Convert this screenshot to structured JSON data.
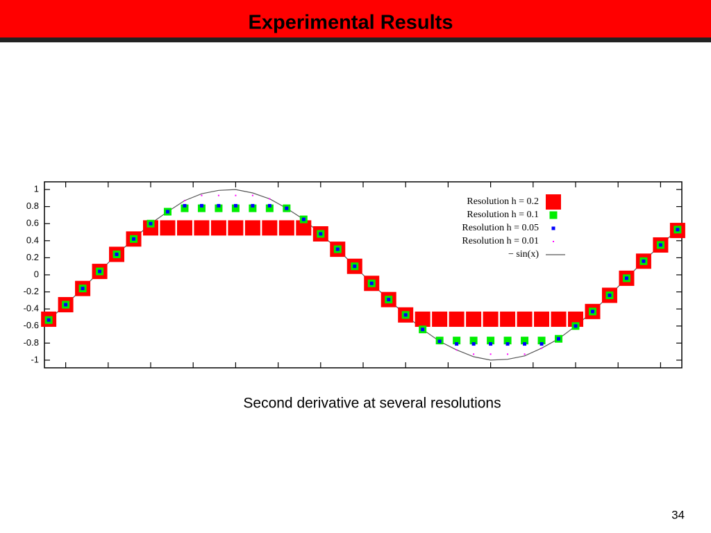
{
  "slide_title": "Experimental Results",
  "caption": "Second derivative at several resolutions",
  "page_number": "34",
  "chart_data": {
    "type": "scatter",
    "xlim": [
      -0.25,
      7.25
    ],
    "xticks": [
      0,
      0.5,
      1,
      1.5,
      2,
      2.5,
      3,
      3.5,
      4,
      4.5,
      5,
      5.5,
      6,
      6.5,
      7
    ],
    "ylim": [
      -1.09,
      1.09
    ],
    "yticks": [
      -1,
      -0.8,
      -0.6,
      -0.4,
      -0.2,
      0,
      0.2,
      0.4,
      0.6,
      0.8,
      1
    ],
    "x": [
      -0.2,
      0,
      0.2,
      0.4,
      0.6,
      0.8,
      1,
      1.2,
      1.4,
      1.6,
      1.8,
      2,
      2.2,
      2.4,
      2.6,
      2.8,
      3,
      3.2,
      3.4,
      3.6,
      3.8,
      4,
      4.2,
      4.4,
      4.6,
      4.8,
      5,
      5.2,
      5.4,
      5.6,
      5.8,
      6,
      6.2,
      6.4,
      6.6,
      6.8,
      7,
      7.2
    ],
    "series": [
      {
        "name": "Resolution h = 0.2",
        "color": "#ff0000",
        "marker": "square",
        "values": [
          -0.52,
          -0.35,
          -0.16,
          0.04,
          0.24,
          0.42,
          0.55,
          0.55,
          0.55,
          0.55,
          0.55,
          0.55,
          0.55,
          0.55,
          0.55,
          0.55,
          0.48,
          0.3,
          0.1,
          -0.1,
          -0.29,
          -0.47,
          -0.52,
          -0.52,
          -0.52,
          -0.52,
          -0.52,
          -0.52,
          -0.52,
          -0.52,
          -0.52,
          -0.52,
          -0.43,
          -0.24,
          -0.04,
          0.16,
          0.35,
          0.52
        ]
      },
      {
        "name": "Resolution h = 0.1",
        "color": "#00ee00",
        "marker": "square",
        "values": [
          -0.53,
          -0.35,
          -0.16,
          0.04,
          0.24,
          0.42,
          0.6,
          0.74,
          0.78,
          0.78,
          0.78,
          0.78,
          0.78,
          0.78,
          0.78,
          0.65,
          0.48,
          0.3,
          0.1,
          -0.1,
          -0.29,
          -0.47,
          -0.64,
          -0.77,
          -0.77,
          -0.77,
          -0.77,
          -0.77,
          -0.77,
          -0.77,
          -0.75,
          -0.6,
          -0.43,
          -0.24,
          -0.04,
          0.16,
          0.35,
          0.53
        ]
      },
      {
        "name": "Resolution h = 0.05",
        "color": "#0000ff",
        "marker": "square",
        "values": [
          -0.53,
          -0.35,
          -0.16,
          0.04,
          0.24,
          0.42,
          0.6,
          0.74,
          0.81,
          0.81,
          0.81,
          0.81,
          0.81,
          0.81,
          0.78,
          0.65,
          0.48,
          0.3,
          0.1,
          -0.1,
          -0.29,
          -0.47,
          -0.64,
          -0.78,
          -0.81,
          -0.81,
          -0.81,
          -0.81,
          -0.81,
          -0.81,
          -0.75,
          -0.6,
          -0.43,
          -0.24,
          -0.04,
          0.16,
          0.35,
          0.53
        ]
      },
      {
        "name": "Resolution h = 0.01",
        "color": "#ff00ff",
        "marker": "dot",
        "values": [
          -0.53,
          -0.35,
          -0.16,
          0.04,
          0.24,
          0.42,
          0.6,
          0.74,
          0.87,
          0.93,
          0.93,
          0.93,
          0.93,
          0.89,
          0.78,
          0.65,
          0.48,
          0.3,
          0.1,
          -0.1,
          -0.29,
          -0.47,
          -0.64,
          -0.78,
          -0.88,
          -0.93,
          -0.93,
          -0.93,
          -0.93,
          -0.86,
          -0.75,
          -0.6,
          -0.43,
          -0.24,
          -0.04,
          0.16,
          0.35,
          0.53
        ]
      },
      {
        "name": "− sin(x)",
        "color": "#555555",
        "marker": "line",
        "values": [
          -0.53,
          -0.35,
          -0.16,
          0.04,
          0.24,
          0.42,
          0.6,
          0.74,
          0.87,
          0.95,
          0.99,
          1,
          0.96,
          0.89,
          0.78,
          0.65,
          0.48,
          0.3,
          0.1,
          -0.1,
          -0.29,
          -0.47,
          -0.64,
          -0.78,
          -0.88,
          -0.96,
          -1,
          -0.99,
          -0.95,
          -0.86,
          -0.75,
          -0.6,
          -0.43,
          -0.24,
          -0.04,
          0.16,
          0.35,
          0.53
        ]
      }
    ],
    "legend": "top-right"
  }
}
